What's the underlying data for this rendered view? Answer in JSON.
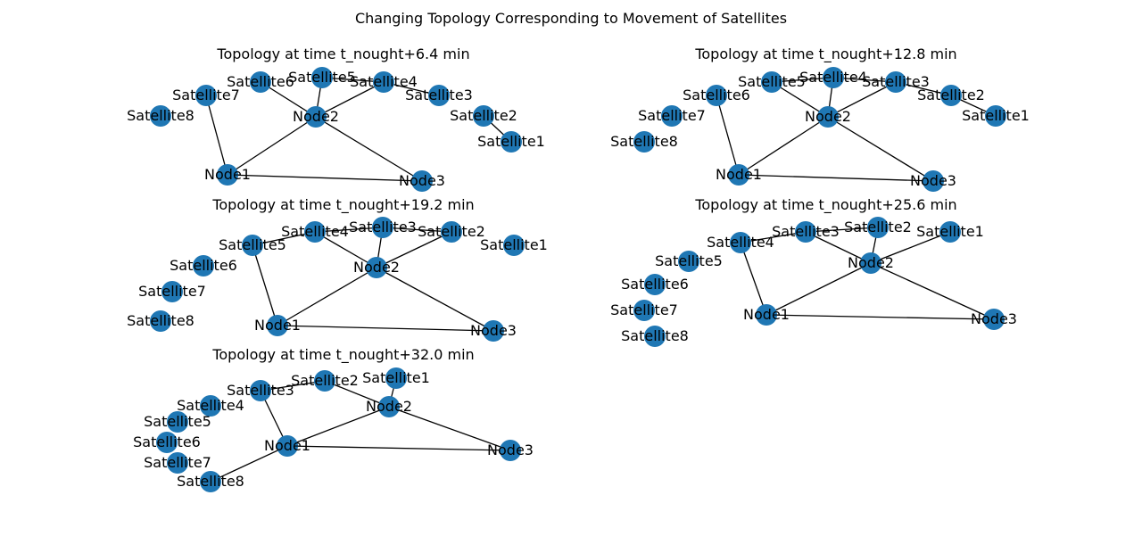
{
  "figure": {
    "title": "Changing Topology Corresponding to Movement of Satellites",
    "node_color": "#1f77b4",
    "edge_color": "#000000"
  },
  "panels": [
    {
      "title": "Topology at time t_nought+6.4 min",
      "nodes": [
        {
          "id": "Satellite8",
          "label": "Satellite8"
        },
        {
          "id": "Satellite7",
          "label": "Satellite7"
        },
        {
          "id": "Satellite6",
          "label": "Satellite6"
        },
        {
          "id": "Satellite5",
          "label": "Satellite5"
        },
        {
          "id": "Satellite4",
          "label": "Satellite4"
        },
        {
          "id": "Satellite3",
          "label": "Satellite3"
        },
        {
          "id": "Satellite2",
          "label": "Satellite2"
        },
        {
          "id": "Satellite1",
          "label": "Satellite1"
        },
        {
          "id": "Node1",
          "label": "Node1"
        },
        {
          "id": "Node2",
          "label": "Node2"
        },
        {
          "id": "Node3",
          "label": "Node3"
        }
      ],
      "edges": [
        [
          "Satellite7",
          "Node1"
        ],
        [
          "Satellite6",
          "Node2"
        ],
        [
          "Satellite5",
          "Node2"
        ],
        [
          "Satellite4",
          "Node2"
        ],
        [
          "Satellite5",
          "Satellite4"
        ],
        [
          "Satellite4",
          "Satellite3"
        ],
        [
          "Satellite2",
          "Satellite1"
        ],
        [
          "Node1",
          "Node2"
        ],
        [
          "Node2",
          "Node3"
        ],
        [
          "Node1",
          "Node3"
        ]
      ]
    },
    {
      "title": "Topology at time t_nought+12.8 min",
      "nodes": [
        {
          "id": "Satellite8",
          "label": "Satellite8"
        },
        {
          "id": "Satellite7",
          "label": "Satellite7"
        },
        {
          "id": "Satellite6",
          "label": "Satellite6"
        },
        {
          "id": "Satellite5",
          "label": "Satellite5"
        },
        {
          "id": "Satellite4",
          "label": "Satellite4"
        },
        {
          "id": "Satellite3",
          "label": "Satellite3"
        },
        {
          "id": "Satellite2",
          "label": "Satellite2"
        },
        {
          "id": "Satellite1",
          "label": "Satellite1"
        },
        {
          "id": "Node1",
          "label": "Node1"
        },
        {
          "id": "Node2",
          "label": "Node2"
        },
        {
          "id": "Node3",
          "label": "Node3"
        }
      ],
      "edges": [
        [
          "Satellite6",
          "Node1"
        ],
        [
          "Satellite5",
          "Node2"
        ],
        [
          "Satellite4",
          "Node2"
        ],
        [
          "Satellite3",
          "Node2"
        ],
        [
          "Satellite5",
          "Satellite4"
        ],
        [
          "Satellite4",
          "Satellite3"
        ],
        [
          "Satellite3",
          "Satellite2"
        ],
        [
          "Satellite2",
          "Satellite1"
        ],
        [
          "Node1",
          "Node2"
        ],
        [
          "Node2",
          "Node3"
        ],
        [
          "Node1",
          "Node3"
        ]
      ]
    },
    {
      "title": "Topology at time t_nought+19.2 min",
      "nodes": [
        {
          "id": "Satellite8",
          "label": "Satellite8"
        },
        {
          "id": "Satellite7",
          "label": "Satellite7"
        },
        {
          "id": "Satellite6",
          "label": "Satellite6"
        },
        {
          "id": "Satellite5",
          "label": "Satellite5"
        },
        {
          "id": "Satellite4",
          "label": "Satellite4"
        },
        {
          "id": "Satellite3",
          "label": "Satellite3"
        },
        {
          "id": "Satellite2",
          "label": "Satellite2"
        },
        {
          "id": "Satellite1",
          "label": "Satellite1"
        },
        {
          "id": "Node1",
          "label": "Node1"
        },
        {
          "id": "Node2",
          "label": "Node2"
        },
        {
          "id": "Node3",
          "label": "Node3"
        }
      ],
      "edges": [
        [
          "Satellite5",
          "Node1"
        ],
        [
          "Satellite5",
          "Satellite4"
        ],
        [
          "Satellite4",
          "Satellite3"
        ],
        [
          "Satellite3",
          "Satellite2"
        ],
        [
          "Satellite4",
          "Node2"
        ],
        [
          "Satellite3",
          "Node2"
        ],
        [
          "Satellite2",
          "Node2"
        ],
        [
          "Node1",
          "Node2"
        ],
        [
          "Node2",
          "Node3"
        ],
        [
          "Node1",
          "Node3"
        ]
      ]
    },
    {
      "title": "Topology at time t_nought+25.6 min",
      "nodes": [
        {
          "id": "Satellite8",
          "label": "Satellite8"
        },
        {
          "id": "Satellite7",
          "label": "Satellite7"
        },
        {
          "id": "Satellite6",
          "label": "Satellite6"
        },
        {
          "id": "Satellite5",
          "label": "Satellite5"
        },
        {
          "id": "Satellite4",
          "label": "Satellite4"
        },
        {
          "id": "Satellite3",
          "label": "Satellite3"
        },
        {
          "id": "Satellite2",
          "label": "Satellite2"
        },
        {
          "id": "Satellite1",
          "label": "Satellite1"
        },
        {
          "id": "Node1",
          "label": "Node1"
        },
        {
          "id": "Node2",
          "label": "Node2"
        },
        {
          "id": "Node3",
          "label": "Node3"
        }
      ],
      "edges": [
        [
          "Satellite4",
          "Node1"
        ],
        [
          "Satellite4",
          "Satellite3"
        ],
        [
          "Satellite3",
          "Satellite2"
        ],
        [
          "Satellite3",
          "Node2"
        ],
        [
          "Satellite2",
          "Node2"
        ],
        [
          "Satellite1",
          "Node2"
        ],
        [
          "Node1",
          "Node2"
        ],
        [
          "Node2",
          "Node3"
        ],
        [
          "Node1",
          "Node3"
        ]
      ]
    },
    {
      "title": "Topology at time t_nought+32.0 min",
      "nodes": [
        {
          "id": "Satellite8",
          "label": "Satellite8"
        },
        {
          "id": "Satellite7",
          "label": "Satellite7"
        },
        {
          "id": "Satellite6",
          "label": "Satellite6"
        },
        {
          "id": "Satellite5",
          "label": "Satellite5"
        },
        {
          "id": "Satellite4",
          "label": "Satellite4"
        },
        {
          "id": "Satellite3",
          "label": "Satellite3"
        },
        {
          "id": "Satellite2",
          "label": "Satellite2"
        },
        {
          "id": "Satellite1",
          "label": "Satellite1"
        },
        {
          "id": "Node1",
          "label": "Node1"
        },
        {
          "id": "Node2",
          "label": "Node2"
        },
        {
          "id": "Node3",
          "label": "Node3"
        }
      ],
      "edges": [
        [
          "Satellite3",
          "Node1"
        ],
        [
          "Satellite8",
          "Node1"
        ],
        [
          "Satellite3",
          "Satellite2"
        ],
        [
          "Satellite2",
          "Node2"
        ],
        [
          "Satellite1",
          "Node2"
        ],
        [
          "Node1",
          "Node2"
        ],
        [
          "Node2",
          "Node3"
        ],
        [
          "Node1",
          "Node3"
        ]
      ]
    }
  ]
}
